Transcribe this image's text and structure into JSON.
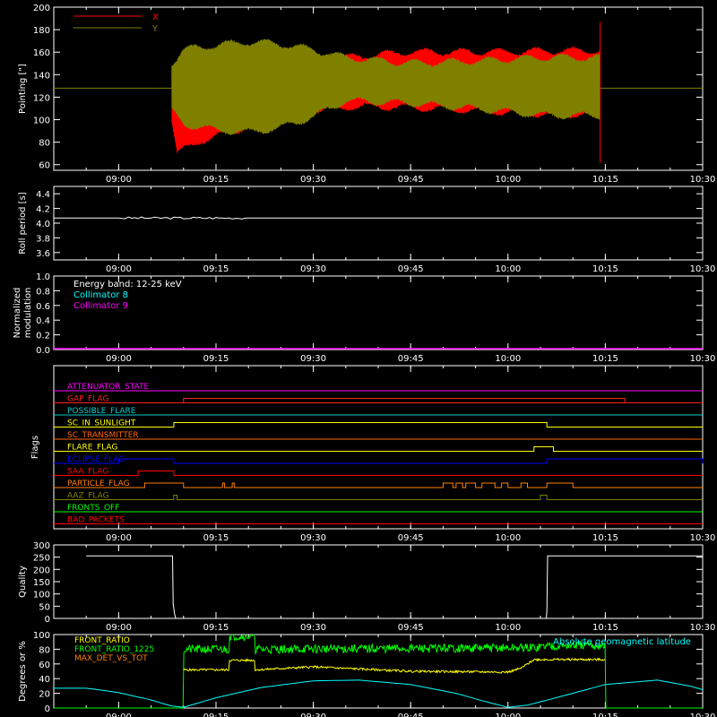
{
  "time_axis": {
    "ticks": [
      "09:00",
      "09:15",
      "09:30",
      "09:45",
      "10:00",
      "10:15",
      "10:30"
    ]
  },
  "chart_data": [
    {
      "type": "line",
      "id": "pointing",
      "ylabel": "Pointing [\"]",
      "ylim": [
        55,
        200
      ],
      "yticks": [
        "60",
        "80",
        "100",
        "120",
        "140",
        "160",
        "180",
        "200"
      ],
      "legend": [
        {
          "name": "X",
          "color": "#ff0000"
        },
        {
          "name": "Y",
          "color": "#808000"
        }
      ],
      "baseline": 128,
      "active_window": [
        "09:08",
        "10:14"
      ],
      "envelope": {
        "x_top": [
          [
            8.2,
            142
          ],
          [
            10,
            144
          ],
          [
            20,
            148
          ],
          [
            30,
            153
          ],
          [
            35,
            155
          ],
          [
            45,
            160
          ],
          [
            60,
            160
          ],
          [
            66,
            161
          ]
        ],
        "x_bottom": [
          [
            8.2,
            100
          ],
          [
            9,
            70
          ],
          [
            12,
            80
          ],
          [
            20,
            94
          ],
          [
            30,
            108
          ],
          [
            36,
            112
          ],
          [
            45,
            111
          ],
          [
            60,
            107
          ],
          [
            66,
            105
          ]
        ],
        "y_top": [
          [
            8.2,
            150
          ],
          [
            10,
            162
          ],
          [
            15,
            166
          ],
          [
            20,
            169
          ],
          [
            25,
            167
          ],
          [
            30,
            162
          ],
          [
            35,
            155
          ],
          [
            45,
            150
          ],
          [
            55,
            152
          ],
          [
            66,
            155
          ]
        ],
        "y_bottom": [
          [
            8.2,
            108
          ],
          [
            10,
            96
          ],
          [
            15,
            91
          ],
          [
            20,
            89
          ],
          [
            25,
            93
          ],
          [
            30,
            103
          ],
          [
            35,
            117
          ],
          [
            45,
            115
          ],
          [
            55,
            110
          ],
          [
            66,
            104
          ]
        ]
      }
    },
    {
      "type": "line",
      "id": "roll_period",
      "ylabel": "Roll period [s]",
      "ylim": [
        3.5,
        4.5
      ],
      "yticks": [
        "3.6",
        "3.8",
        "4.0",
        "4.2",
        "4.4"
      ],
      "series": [
        {
          "color": "#ffffff",
          "value": 4.07
        }
      ]
    },
    {
      "type": "line",
      "id": "modulation",
      "ylabel": "Normalized modulation",
      "ylim": [
        0,
        1
      ],
      "yticks": [
        "0.0",
        "0.2",
        "0.4",
        "0.6",
        "0.8",
        "1.0"
      ],
      "annotations": [
        {
          "text": "Energy band: 12-25 keV",
          "color": "#ffffff"
        },
        {
          "text": "Collimator 8",
          "color": "#00ffff"
        },
        {
          "text": "Collimator 9",
          "color": "#ff00ff"
        }
      ],
      "series": [
        {
          "color": "#ff00ff",
          "value": 0.0
        }
      ]
    },
    {
      "type": "line",
      "id": "flags",
      "ylabel": "Flags",
      "flags": [
        {
          "name": "ATTENUATOR_STATE",
          "color": "#ff00ff",
          "steps": []
        },
        {
          "name": "GAP_FLAG",
          "color": "#ff2020",
          "steps": [
            [
              10,
              10
            ],
            [
              78,
              10
            ]
          ]
        },
        {
          "name": "POSSIBLE_FLARE",
          "color": "#00cccc",
          "steps": []
        },
        {
          "name": "SC_IN_SUNLIGHT",
          "color": "#ffff00",
          "steps": [
            [
              8.5,
              66
            ]
          ]
        },
        {
          "name": "SC_TRANSMITTER",
          "color": "#ff6600",
          "steps": []
        },
        {
          "name": "FLARE_FLAG",
          "color": "#ffff00",
          "steps": [
            [
              64,
              67
            ]
          ]
        },
        {
          "name": "ECLIPSE_FLAG",
          "color": "#0000ff",
          "steps": [
            [
              0,
              8.5
            ],
            [
              66,
              90
            ]
          ]
        },
        {
          "name": "SAA_FLAG",
          "color": "#ff0000",
          "steps": [
            [
              3,
              8.5
            ]
          ]
        },
        {
          "name": "PARTICLE_FLAG",
          "color": "#ff8000",
          "steps": [
            [
              4,
              10
            ],
            [
              16,
              16.3
            ],
            [
              17.5,
              17.8
            ],
            [
              50,
              51.5
            ],
            [
              52,
              53
            ],
            [
              53.5,
              55
            ],
            [
              56,
              58
            ],
            [
              59,
              60
            ],
            [
              62,
              63
            ],
            [
              66,
              70
            ]
          ]
        },
        {
          "name": "AAZ_FLAG",
          "color": "#808000",
          "steps": [
            [
              8.5,
              9
            ],
            [
              65,
              66
            ]
          ]
        },
        {
          "name": "FRONTS_OFF",
          "color": "#00ff00",
          "steps": []
        },
        {
          "name": "BAD_PACKETS",
          "color": "#ff0000",
          "steps": []
        }
      ]
    },
    {
      "type": "line",
      "id": "quality",
      "ylabel": "Quality",
      "ylim": [
        0,
        300
      ],
      "yticks": [
        "0",
        "50",
        "100",
        "150",
        "200",
        "250",
        "300"
      ],
      "series": [
        {
          "color": "#ffffff",
          "points": [
            [
              -5,
              255
            ],
            [
              8.3,
              255
            ],
            [
              8.4,
              60
            ],
            [
              8.6,
              20
            ],
            [
              8.8,
              0
            ],
            [
              65.9,
              0
            ],
            [
              66,
              30
            ],
            [
              66.1,
              255
            ],
            [
              90,
              255
            ]
          ]
        }
      ]
    },
    {
      "type": "line",
      "id": "degrees",
      "ylabel": "Degrees or %",
      "ylim": [
        0,
        100
      ],
      "yticks": [
        "0",
        "20",
        "40",
        "60",
        "80",
        "100"
      ],
      "legend": [
        {
          "name": "FRONT_RATIO",
          "color": "#ffff00"
        },
        {
          "name": "FRONT_RATIO_1225",
          "color": "#00ff00"
        },
        {
          "name": "MAX_DET_VS_TOT",
          "color": "#ff8000"
        }
      ],
      "annotation": {
        "text": "Absolute geomagnetic latitude",
        "color": "#00ffff"
      },
      "series": [
        {
          "color": "#00ff00",
          "points": [
            [
              -5,
              0
            ],
            [
              10,
              0
            ],
            [
              10,
              80
            ],
            [
              17,
              80
            ],
            [
              17,
              98
            ],
            [
              21,
              98
            ],
            [
              21,
              80
            ],
            [
              64,
              82
            ],
            [
              66,
              85
            ],
            [
              75,
              85
            ],
            [
              75,
              0
            ],
            [
              90,
              0
            ]
          ]
        },
        {
          "color": "#ffff00",
          "points": [
            [
              10,
              52
            ],
            [
              17,
              52
            ],
            [
              17,
              65
            ],
            [
              21,
              65
            ],
            [
              21,
              52
            ],
            [
              30,
              56
            ],
            [
              45,
              50
            ],
            [
              60,
              49
            ],
            [
              62,
              54
            ],
            [
              64,
              66
            ],
            [
              75,
              66
            ]
          ]
        },
        {
          "color": "#00ffff",
          "points": [
            [
              -5,
              27
            ],
            [
              0,
              21
            ],
            [
              5,
              11
            ],
            [
              8,
              3
            ],
            [
              10,
              1
            ],
            [
              15,
              14
            ],
            [
              22,
              28
            ],
            [
              30,
              37
            ],
            [
              37,
              38
            ],
            [
              45,
              32
            ],
            [
              52,
              20
            ],
            [
              56,
              10
            ],
            [
              60,
              1
            ],
            [
              63,
              4
            ],
            [
              67,
              13
            ],
            [
              75,
              32
            ],
            [
              83,
              38
            ],
            [
              88,
              30
            ],
            [
              90,
              25
            ]
          ]
        }
      ]
    }
  ]
}
